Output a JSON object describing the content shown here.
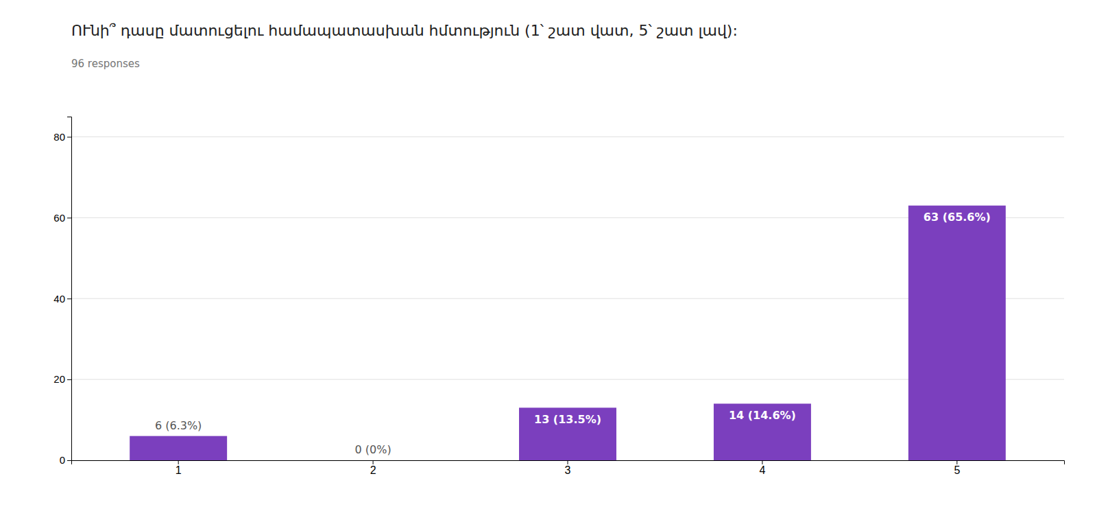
{
  "chart_data": {
    "type": "bar",
    "title": "ՈՒնի՞ դասը մատուցելու համապատասխան հմտություն  (1՝ շատ վատ, 5՝ շատ լավ):",
    "subtitle": "96 responses",
    "categories": [
      "1",
      "2",
      "3",
      "4",
      "5"
    ],
    "values": [
      6,
      0,
      13,
      14,
      63
    ],
    "value_labels": [
      "6 (6.3%)",
      "0 (0%)",
      "13 (13.5%)",
      "14 (14.6%)",
      "63 (65.6%)"
    ],
    "data_labels": true,
    "color": "#7B3FBE",
    "ylim": [
      0,
      85
    ],
    "yticks": [
      0,
      20,
      40,
      60,
      80
    ],
    "grid": true
  }
}
